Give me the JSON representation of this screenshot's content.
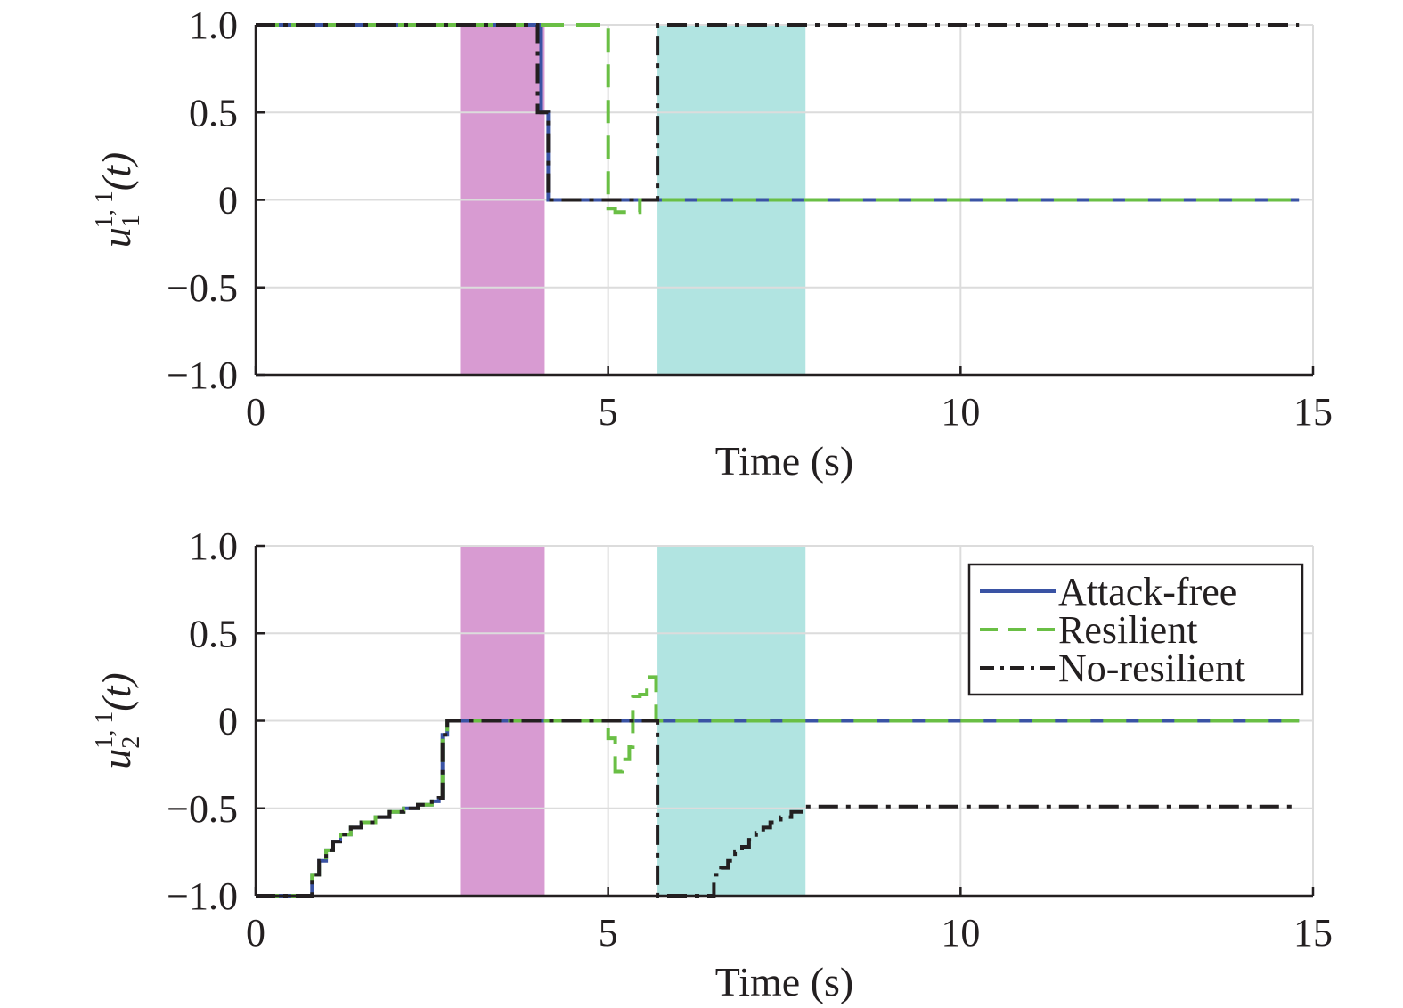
{
  "chart_data": [
    {
      "type": "line",
      "panel": "top",
      "xlabel": "Time (s)",
      "ylabel": {
        "base": "u",
        "sub": "1",
        "sup": "1, 1",
        "arg": "(t)"
      },
      "xlim": [
        0,
        15
      ],
      "ylim": [
        -1.0,
        1.0
      ],
      "xticks": [
        "0",
        "5",
        "10",
        "15"
      ],
      "yticks": [
        "1.0",
        "0.5",
        "0",
        "−0.5",
        "−1.0"
      ],
      "xtick_values": [
        0,
        5,
        10,
        15
      ],
      "ytick_values": [
        1.0,
        0.5,
        0,
        -0.5,
        -1.0
      ],
      "grid": true,
      "shaded_regions": [
        {
          "x": [
            2.9,
            4.1
          ],
          "color": "#d89bd2"
        },
        {
          "x": [
            5.7,
            7.8
          ],
          "color": "#b1e4e1"
        }
      ],
      "series": [
        {
          "name": "Attack-free",
          "color": "#3a53a4",
          "style": "solid",
          "points": [
            [
              0,
              1
            ],
            [
              4.05,
              1
            ],
            [
              4.05,
              0.5
            ],
            [
              4.15,
              0.5
            ],
            [
              4.15,
              0
            ],
            [
              14.8,
              0
            ]
          ]
        },
        {
          "name": "Resilient",
          "color": "#6abf45",
          "style": "dashed",
          "points": [
            [
              0,
              1
            ],
            [
              5.0,
              1
            ],
            [
              5.0,
              -0.05
            ],
            [
              5.1,
              -0.05
            ],
            [
              5.1,
              -0.07
            ],
            [
              5.45,
              -0.07
            ],
            [
              5.45,
              0
            ],
            [
              14.8,
              0
            ]
          ]
        },
        {
          "name": "No-resilient",
          "color": "#231f20",
          "style": "dashdot",
          "points": [
            [
              0,
              1
            ],
            [
              4.0,
              1
            ],
            [
              4.0,
              0.5
            ],
            [
              4.15,
              0.5
            ],
            [
              4.15,
              0
            ],
            [
              5.7,
              0
            ],
            [
              5.7,
              1
            ],
            [
              14.8,
              1
            ]
          ]
        }
      ]
    },
    {
      "type": "line",
      "panel": "bottom",
      "xlabel": "Time (s)",
      "ylabel": {
        "base": "u",
        "sub": "2",
        "sup": "1, 1",
        "arg": "(t)"
      },
      "xlim": [
        0,
        15
      ],
      "ylim": [
        -1.0,
        1.0
      ],
      "xticks": [
        "0",
        "5",
        "10",
        "15"
      ],
      "yticks": [
        "1.0",
        "0.5",
        "0",
        "−0.5",
        "−1.0"
      ],
      "xtick_values": [
        0,
        5,
        10,
        15
      ],
      "ytick_values": [
        1.0,
        0.5,
        0,
        -0.5,
        -1.0
      ],
      "grid": true,
      "legend": {
        "placement": "top-right",
        "entries": [
          {
            "label": "Attack-free",
            "color": "#3a53a4",
            "style": "solid"
          },
          {
            "label": "Resilient",
            "color": "#6abf45",
            "style": "dashed"
          },
          {
            "label": "No-resilient",
            "color": "#231f20",
            "style": "dashdot"
          }
        ]
      },
      "shaded_regions": [
        {
          "x": [
            2.9,
            4.1
          ],
          "color": "#d89bd2"
        },
        {
          "x": [
            5.7,
            7.8
          ],
          "color": "#b1e4e1"
        }
      ],
      "series": [
        {
          "name": "Attack-free",
          "color": "#3a53a4",
          "style": "solid",
          "points": [
            [
              0,
              -1
            ],
            [
              0.8,
              -1
            ],
            [
              0.8,
              -0.88
            ],
            [
              0.9,
              -0.88
            ],
            [
              0.9,
              -0.8
            ],
            [
              1.0,
              -0.8
            ],
            [
              1.0,
              -0.74
            ],
            [
              1.1,
              -0.74
            ],
            [
              1.1,
              -0.69
            ],
            [
              1.2,
              -0.69
            ],
            [
              1.2,
              -0.65
            ],
            [
              1.35,
              -0.65
            ],
            [
              1.35,
              -0.61
            ],
            [
              1.5,
              -0.61
            ],
            [
              1.5,
              -0.58
            ],
            [
              1.7,
              -0.58
            ],
            [
              1.7,
              -0.55
            ],
            [
              1.9,
              -0.55
            ],
            [
              1.9,
              -0.52
            ],
            [
              2.1,
              -0.52
            ],
            [
              2.1,
              -0.5
            ],
            [
              2.3,
              -0.5
            ],
            [
              2.3,
              -0.48
            ],
            [
              2.5,
              -0.48
            ],
            [
              2.5,
              -0.46
            ],
            [
              2.6,
              -0.46
            ],
            [
              2.6,
              -0.44
            ],
            [
              2.65,
              -0.44
            ],
            [
              2.65,
              -0.08
            ],
            [
              2.72,
              -0.08
            ],
            [
              2.72,
              0
            ],
            [
              14.8,
              0
            ]
          ]
        },
        {
          "name": "Resilient",
          "color": "#6abf45",
          "style": "dashed",
          "points": [
            [
              0,
              -1
            ],
            [
              0.8,
              -1
            ],
            [
              0.8,
              -0.88
            ],
            [
              0.9,
              -0.88
            ],
            [
              0.9,
              -0.8
            ],
            [
              1.0,
              -0.8
            ],
            [
              1.0,
              -0.74
            ],
            [
              1.1,
              -0.74
            ],
            [
              1.1,
              -0.69
            ],
            [
              1.2,
              -0.69
            ],
            [
              1.2,
              -0.65
            ],
            [
              1.35,
              -0.65
            ],
            [
              1.35,
              -0.61
            ],
            [
              1.5,
              -0.61
            ],
            [
              1.5,
              -0.58
            ],
            [
              1.7,
              -0.58
            ],
            [
              1.7,
              -0.55
            ],
            [
              1.9,
              -0.55
            ],
            [
              1.9,
              -0.52
            ],
            [
              2.1,
              -0.52
            ],
            [
              2.1,
              -0.5
            ],
            [
              2.3,
              -0.5
            ],
            [
              2.3,
              -0.48
            ],
            [
              2.5,
              -0.48
            ],
            [
              2.5,
              -0.46
            ],
            [
              2.6,
              -0.46
            ],
            [
              2.6,
              -0.44
            ],
            [
              2.65,
              -0.44
            ],
            [
              2.65,
              -0.08
            ],
            [
              2.72,
              -0.08
            ],
            [
              2.72,
              0
            ],
            [
              5.0,
              0
            ],
            [
              5.0,
              -0.1
            ],
            [
              5.1,
              -0.1
            ],
            [
              5.1,
              -0.29
            ],
            [
              5.2,
              -0.29
            ],
            [
              5.2,
              -0.22
            ],
            [
              5.3,
              -0.22
            ],
            [
              5.3,
              -0.15
            ],
            [
              5.35,
              -0.15
            ],
            [
              5.35,
              0.14
            ],
            [
              5.45,
              0.14
            ],
            [
              5.45,
              0.15
            ],
            [
              5.55,
              0.15
            ],
            [
              5.55,
              0.25
            ],
            [
              5.68,
              0.25
            ],
            [
              5.68,
              0
            ],
            [
              14.8,
              0
            ]
          ]
        },
        {
          "name": "No-resilient",
          "color": "#231f20",
          "style": "dashdot",
          "points": [
            [
              0,
              -1
            ],
            [
              0.8,
              -1
            ],
            [
              0.8,
              -0.88
            ],
            [
              0.9,
              -0.88
            ],
            [
              0.9,
              -0.8
            ],
            [
              1.0,
              -0.8
            ],
            [
              1.0,
              -0.74
            ],
            [
              1.1,
              -0.74
            ],
            [
              1.1,
              -0.69
            ],
            [
              1.2,
              -0.69
            ],
            [
              1.2,
              -0.65
            ],
            [
              1.35,
              -0.65
            ],
            [
              1.35,
              -0.61
            ],
            [
              1.5,
              -0.61
            ],
            [
              1.5,
              -0.58
            ],
            [
              1.7,
              -0.58
            ],
            [
              1.7,
              -0.55
            ],
            [
              1.9,
              -0.55
            ],
            [
              1.9,
              -0.52
            ],
            [
              2.1,
              -0.52
            ],
            [
              2.1,
              -0.5
            ],
            [
              2.3,
              -0.5
            ],
            [
              2.3,
              -0.48
            ],
            [
              2.5,
              -0.48
            ],
            [
              2.5,
              -0.46
            ],
            [
              2.6,
              -0.46
            ],
            [
              2.6,
              -0.44
            ],
            [
              2.65,
              -0.44
            ],
            [
              2.65,
              -0.08
            ],
            [
              2.72,
              -0.08
            ],
            [
              2.72,
              0
            ],
            [
              5.7,
              0
            ],
            [
              5.7,
              -1
            ],
            [
              6.5,
              -1
            ],
            [
              6.5,
              -0.88
            ],
            [
              6.6,
              -0.88
            ],
            [
              6.6,
              -0.84
            ],
            [
              6.7,
              -0.84
            ],
            [
              6.7,
              -0.8
            ],
            [
              6.8,
              -0.8
            ],
            [
              6.8,
              -0.75
            ],
            [
              6.9,
              -0.75
            ],
            [
              6.9,
              -0.72
            ],
            [
              7.0,
              -0.72
            ],
            [
              7.0,
              -0.68
            ],
            [
              7.1,
              -0.68
            ],
            [
              7.1,
              -0.64
            ],
            [
              7.2,
              -0.64
            ],
            [
              7.2,
              -0.61
            ],
            [
              7.3,
              -0.61
            ],
            [
              7.3,
              -0.58
            ],
            [
              7.45,
              -0.58
            ],
            [
              7.45,
              -0.55
            ],
            [
              7.6,
              -0.55
            ],
            [
              7.6,
              -0.52
            ],
            [
              7.8,
              -0.52
            ],
            [
              7.8,
              -0.49
            ],
            [
              14.8,
              -0.49
            ]
          ]
        }
      ]
    }
  ]
}
